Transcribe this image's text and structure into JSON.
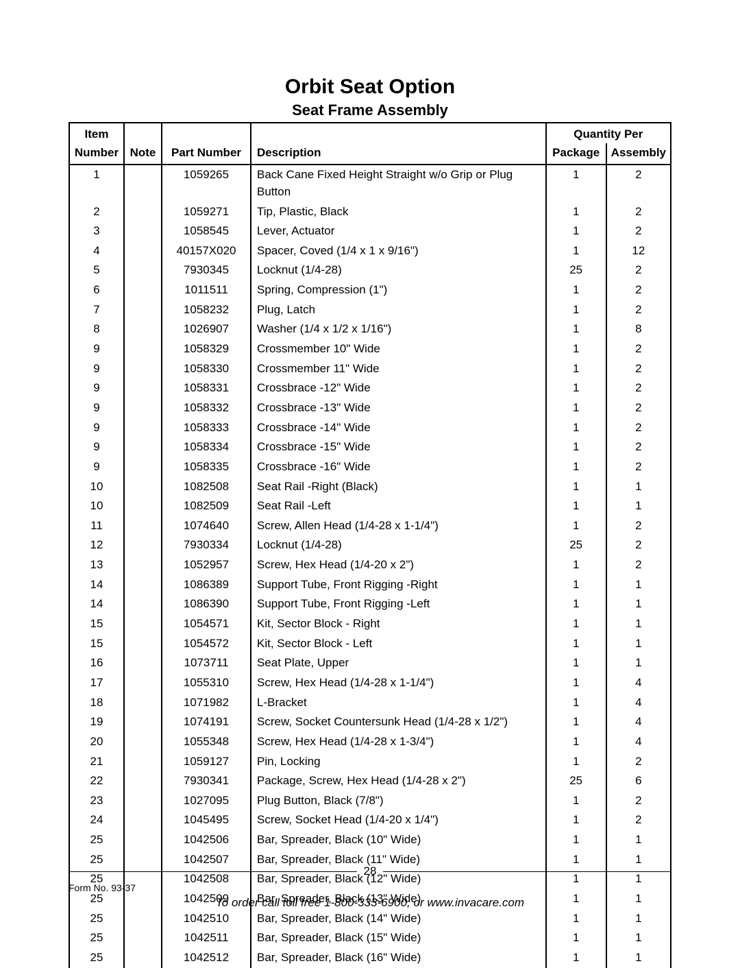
{
  "title": "Orbit Seat Option",
  "subtitle": "Seat Frame Assembly",
  "columns": {
    "item_top": "Item",
    "item_bot": "Number",
    "note": "Note",
    "part": "Part Number",
    "desc": "Description",
    "qty_group": "Quantity Per",
    "package": "Package",
    "assembly": "Assembly"
  },
  "rows": [
    {
      "item": "1",
      "note": "",
      "part": "1059265",
      "desc": "Back Cane Fixed Height Straight w/o Grip or Plug Button",
      "pkg": "1",
      "asm": "2"
    },
    {
      "item": "2",
      "note": "",
      "part": "1059271",
      "desc": "Tip, Plastic, Black",
      "pkg": "1",
      "asm": "2"
    },
    {
      "item": "3",
      "note": "",
      "part": "1058545",
      "desc": "Lever, Actuator",
      "pkg": "1",
      "asm": "2"
    },
    {
      "item": "4",
      "note": "",
      "part": "40157X020",
      "desc": "Spacer, Coved (1/4 x 1 x 9/16\")",
      "pkg": "1",
      "asm": "12"
    },
    {
      "item": "5",
      "note": "",
      "part": "7930345",
      "desc": "Locknut (1/4-28)",
      "pkg": "25",
      "asm": "2"
    },
    {
      "item": "6",
      "note": "",
      "part": "1011511",
      "desc": "Spring, Compression (1\")",
      "pkg": "1",
      "asm": "2"
    },
    {
      "item": "7",
      "note": "",
      "part": "1058232",
      "desc": "Plug, Latch",
      "pkg": "1",
      "asm": "2"
    },
    {
      "item": "8",
      "note": "",
      "part": "1026907",
      "desc": "Washer (1/4 x 1/2 x 1/16\")",
      "pkg": "1",
      "asm": "8"
    },
    {
      "item": "9",
      "note": "",
      "part": "1058329",
      "desc": "Crossmember 10\" Wide",
      "pkg": "1",
      "asm": "2"
    },
    {
      "item": "9",
      "note": "",
      "part": "1058330",
      "desc": "Crossmember 11\" Wide",
      "pkg": "1",
      "asm": "2"
    },
    {
      "item": "9",
      "note": "",
      "part": "1058331",
      "desc": "Crossbrace -12\" Wide",
      "pkg": "1",
      "asm": "2"
    },
    {
      "item": "9",
      "note": "",
      "part": "1058332",
      "desc": "Crossbrace -13\" Wide",
      "pkg": "1",
      "asm": "2"
    },
    {
      "item": "9",
      "note": "",
      "part": "1058333",
      "desc": "Crossbrace -14\" Wide",
      "pkg": "1",
      "asm": "2"
    },
    {
      "item": "9",
      "note": "",
      "part": "1058334",
      "desc": "Crossbrace -15\" Wide",
      "pkg": "1",
      "asm": "2"
    },
    {
      "item": "9",
      "note": "",
      "part": "1058335",
      "desc": "Crossbrace -16\" Wide",
      "pkg": "1",
      "asm": "2"
    },
    {
      "item": "10",
      "note": "",
      "part": "1082508",
      "desc": "Seat Rail -Right (Black)",
      "pkg": "1",
      "asm": "1"
    },
    {
      "item": "10",
      "note": "",
      "part": "1082509",
      "desc": "Seat Rail -Left",
      "pkg": "1",
      "asm": "1"
    },
    {
      "item": "11",
      "note": "",
      "part": "1074640",
      "desc": "Screw, Allen Head (1/4-28 x 1-1/4\")",
      "pkg": "1",
      "asm": "2"
    },
    {
      "item": "12",
      "note": "",
      "part": "7930334",
      "desc": "Locknut (1/4-28)",
      "pkg": "25",
      "asm": "2"
    },
    {
      "item": "13",
      "note": "",
      "part": "1052957",
      "desc": "Screw, Hex Head (1/4-20 x 2\")",
      "pkg": "1",
      "asm": "2"
    },
    {
      "item": "14",
      "note": "",
      "part": "1086389",
      "desc": "Support Tube, Front Rigging -Right",
      "pkg": "1",
      "asm": "1"
    },
    {
      "item": "14",
      "note": "",
      "part": "1086390",
      "desc": "Support Tube, Front Rigging -Left",
      "pkg": "1",
      "asm": "1"
    },
    {
      "item": "15",
      "note": "",
      "part": "1054571",
      "desc": "Kit, Sector Block - Right",
      "pkg": "1",
      "asm": "1"
    },
    {
      "item": "15",
      "note": "",
      "part": "1054572",
      "desc": "Kit, Sector Block - Left",
      "pkg": "1",
      "asm": "1"
    },
    {
      "item": "16",
      "note": "",
      "part": "1073711",
      "desc": "Seat Plate, Upper",
      "pkg": "1",
      "asm": "1"
    },
    {
      "item": "17",
      "note": "",
      "part": "1055310",
      "desc": "Screw, Hex Head (1/4-28 x 1-1/4\")",
      "pkg": "1",
      "asm": "4"
    },
    {
      "item": "18",
      "note": "",
      "part": "1071982",
      "desc": "L-Bracket",
      "pkg": "1",
      "asm": "4"
    },
    {
      "item": "19",
      "note": "",
      "part": "1074191",
      "desc": "Screw, Socket Countersunk Head (1/4-28 x 1/2\")",
      "pkg": "1",
      "asm": "4"
    },
    {
      "item": "20",
      "note": "",
      "part": "1055348",
      "desc": "Screw, Hex Head (1/4-28 x 1-3/4\")",
      "pkg": "1",
      "asm": "4"
    },
    {
      "item": "21",
      "note": "",
      "part": "1059127",
      "desc": "Pin, Locking",
      "pkg": "1",
      "asm": "2"
    },
    {
      "item": "22",
      "note": "",
      "part": "7930341",
      "desc": "Package, Screw, Hex Head (1/4-28 x 2\")",
      "pkg": "25",
      "asm": "6"
    },
    {
      "item": "23",
      "note": "",
      "part": "1027095",
      "desc": "Plug Button, Black (7/8\")",
      "pkg": "1",
      "asm": "2"
    },
    {
      "item": "24",
      "note": "",
      "part": "1045495",
      "desc": "Screw, Socket Head (1/4-20 x 1/4\")",
      "pkg": "1",
      "asm": "2"
    },
    {
      "item": "25",
      "note": "",
      "part": "1042506",
      "desc": "Bar, Spreader, Black (10\" Wide)",
      "pkg": "1",
      "asm": "1"
    },
    {
      "item": "25",
      "note": "",
      "part": "1042507",
      "desc": "Bar, Spreader, Black (11\" Wide)",
      "pkg": "1",
      "asm": "1"
    },
    {
      "item": "25",
      "note": "",
      "part": "1042508",
      "desc": "Bar, Spreader, Black (12\" Wide)",
      "pkg": "1",
      "asm": "1"
    },
    {
      "item": "25",
      "note": "",
      "part": "1042509",
      "desc": "Bar, Spreader, Black (13\" Wide)",
      "pkg": "1",
      "asm": "1"
    },
    {
      "item": "25",
      "note": "",
      "part": "1042510",
      "desc": "Bar, Spreader, Black (14\" Wide)",
      "pkg": "1",
      "asm": "1"
    },
    {
      "item": "25",
      "note": "",
      "part": "1042511",
      "desc": "Bar, Spreader, Black (15\" Wide)",
      "pkg": "1",
      "asm": "1"
    },
    {
      "item": "25",
      "note": "",
      "part": "1042512",
      "desc": "Bar, Spreader, Black (16\" Wide)",
      "pkg": "1",
      "asm": "1"
    }
  ],
  "footer": {
    "page_number": "28",
    "form": "Form No. 93-37",
    "order": "To order call toll free 1-800-333-6900, or www.invacare.com"
  }
}
